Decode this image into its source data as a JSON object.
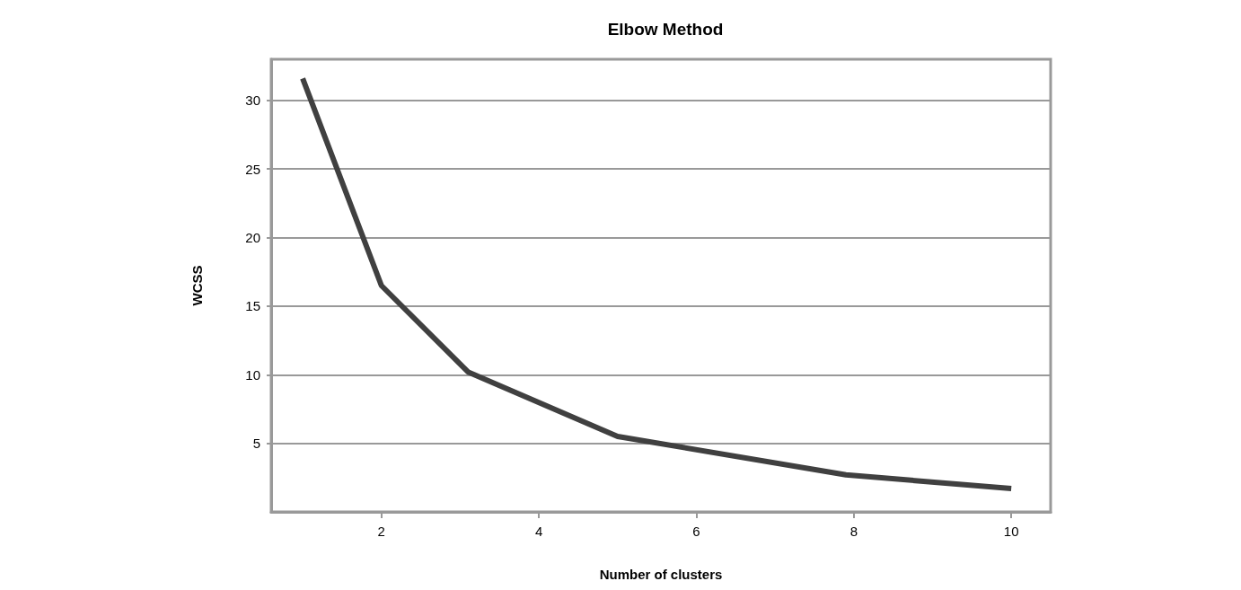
{
  "chart_data": {
    "type": "line",
    "title": "Elbow Method",
    "xlabel": "Number of clusters",
    "ylabel": "WCSS",
    "x": [
      1,
      2,
      3.1,
      5,
      7.9,
      10
    ],
    "series": [
      {
        "color": "#404040",
        "values": [
          31.6,
          16.5,
          10.2,
          5.5,
          2.7,
          1.7
        ]
      }
    ],
    "xlim": [
      0.6,
      10.5
    ],
    "xticks": [
      2,
      4,
      6,
      8,
      10
    ],
    "ylim": [
      0,
      33
    ],
    "yticks": [
      5,
      10,
      15,
      20,
      25,
      30
    ],
    "grid": "y",
    "marker": "none",
    "line_style": "solid"
  }
}
